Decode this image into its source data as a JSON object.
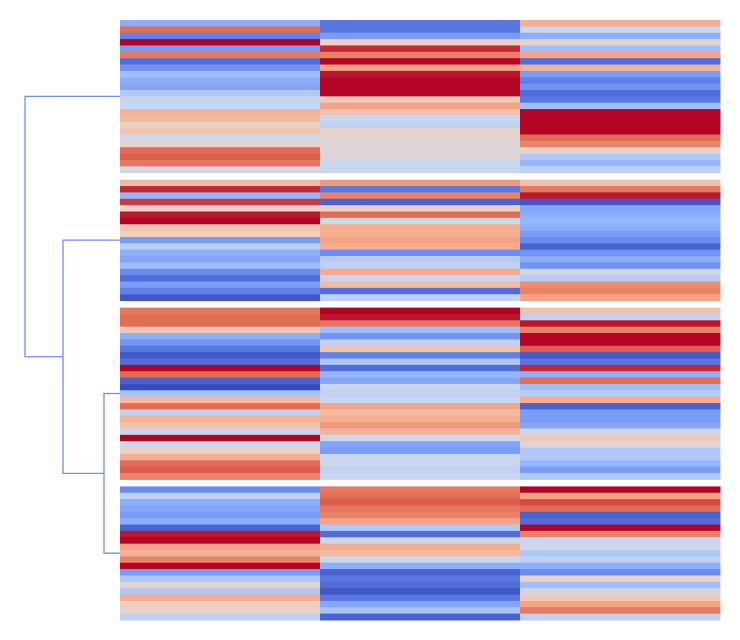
{
  "chart_data": {
    "type": "heatmap",
    "vlim": [
      -2,
      2
    ],
    "colormap": [
      "#3b4cc0",
      "#6788ee",
      "#9abbff",
      "#c9d7f0",
      "#edd1c2",
      "#f7a889",
      "#e26952",
      "#b40426"
    ],
    "dendrogram_color": "#6f8ff0",
    "groups": [
      [
        [
          -1,
          -1.6,
          0.8
        ],
        [
          1.4,
          -1.6,
          -0.3
        ],
        [
          -1.5,
          -1.2,
          -1
        ],
        [
          2,
          0.3,
          0.2
        ],
        [
          -1.2,
          1.8,
          -0.8
        ],
        [
          1.3,
          1.2,
          0.9
        ],
        [
          -1.7,
          2,
          -1.7
        ],
        [
          -1.3,
          0.9,
          0.7
        ],
        [
          -0.8,
          1.9,
          -1.2
        ],
        [
          -1,
          2,
          -1.5
        ],
        [
          -1.1,
          2,
          -1.3
        ],
        [
          -0.6,
          2,
          -1.7
        ],
        [
          -0.3,
          0.4,
          -1.6
        ],
        [
          -0.3,
          0.9,
          -0.8
        ],
        [
          0.7,
          0.5,
          2
        ],
        [
          0.6,
          -0.3,
          2
        ],
        [
          0.3,
          -0.4,
          2
        ],
        [
          0.5,
          0.2,
          2
        ],
        [
          -0.2,
          0.1,
          1.4
        ],
        [
          0.1,
          0.1,
          1.2
        ],
        [
          1.4,
          0,
          0.2
        ],
        [
          1.5,
          0.1,
          -0.6
        ],
        [
          1.3,
          -0.3,
          -0.9
        ],
        [
          -0.2,
          -0.3,
          -0.4
        ]
      ],
      [
        [
          0.6,
          1,
          0.5
        ],
        [
          1.8,
          -1.6,
          1.3
        ],
        [
          -0.9,
          1.2,
          1.9
        ],
        [
          1.7,
          -1.8,
          -1.9
        ],
        [
          0.2,
          0.3,
          -1.1
        ],
        [
          1.9,
          1.4,
          -1
        ],
        [
          2,
          -0.2,
          -0.9
        ],
        [
          0.5,
          0.8,
          -1
        ],
        [
          0.3,
          0.8,
          -1.2
        ],
        [
          -1.2,
          0.9,
          -1.4
        ],
        [
          -0.5,
          0.8,
          -1.8
        ],
        [
          -1,
          -1.4,
          -1.3
        ],
        [
          -1.1,
          -0.5,
          -1
        ],
        [
          -0.8,
          -0.4,
          -1.3
        ],
        [
          -1.4,
          0.8,
          -0.2
        ],
        [
          -1.7,
          -0.3,
          -0.5
        ],
        [
          -1.2,
          0.6,
          1.1
        ],
        [
          -1.5,
          -1.7,
          1.2
        ],
        [
          -1.9,
          -0.4,
          0.9
        ]
      ],
      [
        [
          1.3,
          2,
          0.5
        ],
        [
          1.4,
          1.9,
          -0.4
        ],
        [
          1.4,
          1.3,
          1.9
        ],
        [
          0.4,
          -0.8,
          1.2
        ],
        [
          -1,
          -1.3,
          2
        ],
        [
          -1.3,
          -0.4,
          2
        ],
        [
          -1.6,
          0.5,
          1.5
        ],
        [
          -1.9,
          -1.5,
          -1.9
        ],
        [
          -1.7,
          -0.6,
          -1.6
        ],
        [
          2,
          -1.7,
          1.8
        ],
        [
          1.4,
          -0.9,
          -1
        ],
        [
          -1.8,
          -1.1,
          1.4
        ],
        [
          -2,
          -0.3,
          -0.8
        ],
        [
          -0.7,
          -0.4,
          -0.5
        ],
        [
          0.6,
          -0.3,
          0.8
        ],
        [
          1.4,
          0.9,
          -1.8
        ],
        [
          -0.4,
          0.6,
          -1.2
        ],
        [
          0.7,
          0.8,
          -1.2
        ],
        [
          0.5,
          1,
          -1.1
        ],
        [
          -0.2,
          0.7,
          -0.2
        ],
        [
          2,
          -0.2,
          0.4
        ],
        [
          -0.2,
          -1.1,
          0.1
        ],
        [
          0.3,
          -1.2,
          -0.6
        ],
        [
          0.8,
          -0.3,
          -0.6
        ],
        [
          1.4,
          -0.2,
          -0.9
        ],
        [
          1.5,
          -0.4,
          -1.2
        ],
        [
          1.2,
          -0.3,
          -0.6
        ]
      ],
      [
        [
          -1.4,
          1.3,
          2
        ],
        [
          -0.4,
          1.4,
          0.9
        ],
        [
          -1,
          1.5,
          1.6
        ],
        [
          -1.1,
          1.3,
          1.4
        ],
        [
          -1.2,
          1.2,
          -1.8
        ],
        [
          -1,
          0.9,
          -1.7
        ],
        [
          -1.8,
          -0.6,
          2
        ],
        [
          1.9,
          -1.7,
          1.2
        ],
        [
          2,
          -0.2,
          -0.3
        ],
        [
          0.9,
          0.8,
          -0.2
        ],
        [
          0.7,
          0.6,
          -0.6
        ],
        [
          1.2,
          -0.2,
          -0.4
        ],
        [
          2,
          -1,
          -1
        ],
        [
          -1.2,
          -1.8,
          -1.4
        ],
        [
          -0.6,
          -1.6,
          0.2
        ],
        [
          0.1,
          -1.7,
          -0.8
        ],
        [
          -0.6,
          -1.9,
          -0.1
        ],
        [
          0.8,
          -1.6,
          0.4
        ],
        [
          0.3,
          -1.1,
          0.9
        ],
        [
          0.2,
          -0.7,
          1.3
        ],
        [
          -0.4,
          -1.8,
          -0.4
        ]
      ]
    ]
  }
}
